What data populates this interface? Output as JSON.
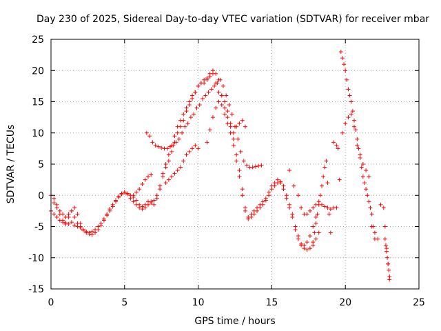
{
  "chart_data": {
    "type": "scatter",
    "title": "Day 230 of 2025, Sidereal Day-to-day VTEC variation (SDTVAR) for receiver mbar",
    "xlabel": "GPS time / hours",
    "ylabel": "SDTVAR / TECUs",
    "xlim": [
      0,
      25
    ],
    "ylim": [
      -15,
      25
    ],
    "xticks": [
      0,
      5,
      10,
      15,
      20,
      25
    ],
    "yticks": [
      -15,
      -10,
      -5,
      0,
      5,
      10,
      15,
      20,
      25
    ],
    "grid": true,
    "marker": "+",
    "color": "#ff0000",
    "series": [
      {
        "x": [
          0.0,
          0.2,
          0.4,
          0.6,
          0.8,
          1.0,
          1.2,
          1.4,
          1.6,
          1.8,
          2.0,
          2.2,
          2.4,
          2.6,
          2.8,
          3.0,
          3.2,
          3.4,
          3.6,
          3.8,
          4.0,
          4.2,
          4.4,
          4.6,
          4.8,
          5.0,
          5.2,
          5.4,
          5.6,
          5.8,
          6.0,
          6.2,
          6.4,
          6.6,
          6.8,
          7.0,
          7.2,
          7.4,
          7.6,
          7.8,
          8.0,
          8.2,
          8.4,
          8.6,
          8.8,
          9.0,
          9.2,
          9.4,
          9.6,
          9.8,
          10.0,
          10.2,
          10.4,
          10.6,
          10.8,
          11.0,
          11.2,
          11.4,
          11.6,
          11.8,
          12.0,
          12.2,
          12.4,
          12.6,
          12.8,
          13.0,
          13.2,
          13.4,
          13.6,
          13.8,
          14.0,
          14.2,
          14.4,
          14.6,
          14.8,
          15.0,
          15.2,
          15.4,
          15.6,
          15.8,
          16.0,
          16.2,
          16.4,
          16.6,
          16.8,
          17.0,
          17.2,
          17.4,
          17.6,
          17.8,
          18.0,
          18.2
        ],
        "y": [
          -2.5,
          -3.0,
          -3.5,
          -4.0,
          -4.3,
          -4.6,
          -4.6,
          -4.3,
          -4.8,
          -5.0,
          -5.2,
          -5.6,
          -6.0,
          -6.2,
          -6.3,
          -6.0,
          -5.5,
          -4.8,
          -4.0,
          -3.2,
          -2.5,
          -1.8,
          -1.0,
          -0.3,
          0.2,
          0.5,
          0.3,
          0.0,
          -0.3,
          -0.8,
          -1.5,
          -1.8,
          -1.5,
          -1.0,
          -1.2,
          -1.5,
          -0.5,
          1.0,
          3.0,
          4.5,
          5.5,
          7.0,
          8.5,
          10.0,
          11.0,
          12.0,
          13.5,
          14.5,
          15.5,
          16.5,
          17.5,
          18.0,
          18.5,
          18.8,
          19.5,
          20.0,
          19.5,
          18.5,
          16.0,
          14.0,
          12.5,
          11.0,
          9.0,
          6.5,
          4.0,
          1.0,
          -2.0,
          -3.5,
          -3.0,
          -2.5,
          -2.0,
          -1.5,
          -1.0,
          -0.5,
          0.5,
          1.5,
          2.0,
          2.5,
          2.0,
          1.5,
          0.0,
          -1.5,
          -3.0,
          -5.0,
          -6.5,
          -8.0,
          -8.5,
          -8.7,
          -8.5,
          -8.0,
          -7.0,
          -6.0
        ]
      },
      {
        "x": [
          0.0,
          0.2,
          0.4,
          0.6,
          0.8,
          1.0,
          1.2,
          1.4,
          1.6,
          1.8,
          2.0,
          2.2,
          2.4,
          2.6,
          2.8,
          3.0,
          3.2,
          3.4,
          3.6,
          3.8,
          4.0,
          4.2,
          4.4,
          4.6,
          4.8,
          5.0,
          5.2,
          5.4,
          5.6,
          5.8,
          6.0,
          6.2,
          6.4,
          6.6,
          6.8,
          7.0,
          7.2,
          7.4,
          7.6,
          7.8,
          8.0,
          8.2,
          8.4,
          8.6,
          8.8,
          9.0,
          9.2,
          9.4,
          9.6,
          9.8,
          10.0,
          10.2,
          10.4,
          10.6,
          10.8,
          11.0,
          11.2,
          11.4,
          11.6,
          11.8,
          12.0,
          12.2,
          12.4,
          12.6,
          12.8,
          13.0,
          13.2,
          13.4,
          13.6,
          13.8,
          14.0,
          14.2,
          14.4,
          14.6,
          14.8,
          15.0,
          15.2,
          15.4,
          15.6,
          15.8,
          16.0,
          16.2,
          16.4,
          16.6,
          16.8,
          17.0,
          17.2,
          17.4,
          17.6,
          17.8,
          18.0
        ],
        "y": [
          0.0,
          -0.5,
          -1.5,
          -2.5,
          -3.0,
          -3.5,
          -3.0,
          -2.5,
          -3.5,
          -4.5,
          -5.0,
          -5.5,
          -5.8,
          -6.0,
          -5.8,
          -5.5,
          -5.0,
          -4.5,
          -3.8,
          -3.0,
          -2.2,
          -1.5,
          -0.8,
          -0.2,
          0.3,
          0.5,
          0.2,
          -0.5,
          -1.0,
          -1.5,
          -2.0,
          -2.2,
          -2.0,
          -1.5,
          -1.0,
          -0.8,
          0.0,
          1.5,
          3.5,
          5.0,
          6.5,
          8.0,
          9.5,
          11.0,
          12.0,
          13.0,
          14.0,
          15.0,
          16.0,
          16.5,
          17.5,
          18.0,
          18.0,
          18.5,
          19.0,
          19.5,
          18.0,
          16.5,
          14.5,
          13.0,
          11.5,
          10.0,
          8.0,
          5.5,
          3.0,
          0.0,
          -2.5,
          -3.8,
          -3.5,
          -3.0,
          -2.5,
          -2.0,
          -1.5,
          -0.8,
          0.0,
          1.0,
          1.5,
          2.0,
          2.2,
          1.0,
          -0.5,
          -2.0,
          -3.5,
          -5.5,
          -7.0,
          -7.8,
          -8.0,
          -7.5,
          -6.5,
          -5.0,
          -3.5
        ]
      },
      {
        "x": [
          6.5,
          6.7,
          6.9,
          7.1,
          7.3,
          7.5,
          7.7,
          7.9,
          8.1,
          8.3,
          8.5,
          8.7,
          8.9,
          9.1,
          9.3,
          9.5,
          9.7,
          9.9,
          10.1,
          10.3,
          10.5,
          10.7,
          10.9,
          11.1,
          11.3,
          11.5,
          11.7,
          11.9,
          12.1,
          12.3,
          12.5,
          12.7,
          12.9,
          13.1,
          13.3,
          13.5,
          13.7,
          13.9,
          14.1,
          14.3
        ],
        "y": [
          10.0,
          9.5,
          8.5,
          8.0,
          7.8,
          7.6,
          7.5,
          7.5,
          7.8,
          8.0,
          8.5,
          9.0,
          10.0,
          11.0,
          11.5,
          12.5,
          13.0,
          14.0,
          14.5,
          15.5,
          16.0,
          16.5,
          17.0,
          17.5,
          18.0,
          18.5,
          17.5,
          16.0,
          14.5,
          13.0,
          11.0,
          9.0,
          7.0,
          5.5,
          4.8,
          4.5,
          4.5,
          4.6,
          4.7,
          4.8
        ]
      },
      {
        "x": [
          7.8,
          8.0,
          8.2,
          8.4,
          8.6,
          8.8,
          9.0,
          9.2,
          9.4,
          9.6,
          9.8,
          10.0
        ],
        "y": [
          2.0,
          2.5,
          3.0,
          3.5,
          4.0,
          4.5,
          5.5,
          6.5,
          7.0,
          7.5,
          8.0,
          7.5
        ]
      },
      {
        "x": [
          10.6,
          10.8,
          11.0,
          11.2,
          11.4,
          11.6,
          11.8,
          12.0,
          12.2,
          12.4,
          12.6,
          12.8,
          13.0,
          13.2
        ],
        "y": [
          8.5,
          10.5,
          12.5,
          14.0,
          15.0,
          16.0,
          15.0,
          13.5,
          11.5,
          10.0,
          11.0,
          11.5,
          12.0,
          11.0
        ]
      },
      {
        "x": [
          0.2,
          0.4,
          0.6,
          0.8,
          1.0,
          1.2,
          1.4,
          1.6,
          1.8,
          2.0
        ],
        "y": [
          -1.2,
          -2.0,
          -3.0,
          -4.0,
          -4.4,
          -3.5,
          -2.5,
          -2.0,
          -3.0,
          -4.5
        ]
      },
      {
        "x": [
          5.6,
          5.8,
          6.0,
          6.2,
          6.4,
          6.6,
          6.8
        ],
        "y": [
          0.0,
          0.5,
          1.0,
          1.8,
          2.5,
          3.0,
          3.3
        ]
      },
      {
        "x": [
          16.2,
          16.5,
          16.8,
          17.0,
          17.2,
          17.4,
          17.6,
          17.8,
          18.0,
          18.2,
          18.4,
          18.6,
          18.8,
          19.0,
          19.2,
          19.4
        ],
        "y": [
          4.0,
          1.5,
          0.0,
          -2.0,
          -3.0,
          -3.0,
          -2.5,
          -2.0,
          -1.5,
          -1.0,
          -1.5,
          -1.8,
          -2.0,
          -2.2,
          -2.0,
          -2.0
        ]
      },
      {
        "x": [
          17.8,
          17.9,
          18.0,
          18.1,
          18.2,
          18.3,
          18.4,
          18.5,
          18.6,
          18.7,
          18.8,
          18.9,
          19.0
        ],
        "y": [
          -7.5,
          -6.0,
          -4.5,
          -3.0,
          -1.5,
          0.0,
          1.5,
          3.0,
          4.5,
          5.5,
          2.0,
          -3.0,
          -6.0
        ]
      },
      {
        "x": [
          19.2,
          19.4,
          19.5,
          19.6,
          19.8,
          20.0,
          20.2,
          20.4,
          20.6,
          20.8,
          21.0,
          21.2,
          21.4,
          21.6
        ],
        "y": [
          8.5,
          8.0,
          7.5,
          2.5,
          10.0,
          11.5,
          12.5,
          13.0,
          11.0,
          8.0,
          6.5,
          5.0,
          4.0,
          3.0
        ]
      },
      {
        "x": [
          19.7,
          19.8,
          19.9,
          20.0,
          20.1,
          20.2,
          20.3,
          20.4,
          20.5,
          20.6,
          20.7,
          20.8,
          20.9,
          21.0,
          21.1,
          21.2,
          21.3,
          21.4,
          21.5,
          21.6,
          21.7,
          21.8,
          21.9,
          22.0
        ],
        "y": [
          23.0,
          22.0,
          21.0,
          20.0,
          18.5,
          17.0,
          16.0,
          15.0,
          13.5,
          12.0,
          10.5,
          9.0,
          7.5,
          6.0,
          4.5,
          3.0,
          2.0,
          1.0,
          0.0,
          -1.0,
          -2.0,
          -3.0,
          -5.0,
          -7.0
        ]
      },
      {
        "x": [
          21.8,
          22.0,
          22.2,
          22.4,
          22.6,
          22.7,
          22.8,
          22.9,
          23.0
        ],
        "y": [
          -5.0,
          -6.0,
          -7.0,
          -1.5,
          -2.0,
          -5.0,
          -8.5,
          -11.0,
          -13.5
        ]
      },
      {
        "x": [
          22.7,
          22.75,
          22.8,
          22.85,
          22.9,
          22.95,
          23.0
        ],
        "y": [
          -7.0,
          -8.0,
          -9.0,
          -10.0,
          -11.0,
          -12.0,
          -13.0
        ]
      }
    ]
  }
}
